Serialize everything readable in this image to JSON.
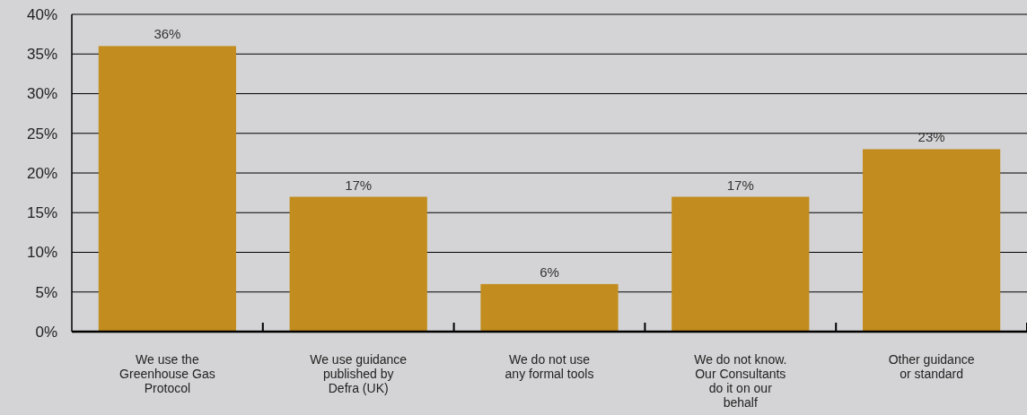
{
  "chart_data": {
    "type": "bar",
    "categories": [
      "We use the Greenhouse Gas Protocol",
      "We use guidance published by Defra (UK)",
      "We do not use any formal tools",
      "We do not know. Our Consultants do it on our behalf",
      "Other guidance or standard"
    ],
    "values": [
      36,
      17,
      6,
      17,
      23
    ],
    "value_labels": [
      "36%",
      "17%",
      "6%",
      "17%",
      "23%"
    ],
    "color": "#c28d1e",
    "ylim": [
      0,
      40
    ],
    "yticks": [
      {
        "value": 0,
        "label": "0%"
      },
      {
        "value": 5,
        "label": "5%"
      },
      {
        "value": 10,
        "label": "10%"
      },
      {
        "value": 15,
        "label": "15%"
      },
      {
        "value": 20,
        "label": "20%"
      },
      {
        "value": 25,
        "label": "25%"
      },
      {
        "value": 30,
        "label": "30%"
      },
      {
        "value": 35,
        "label": "35%"
      },
      {
        "value": 40,
        "label": "40%"
      }
    ],
    "grid": "y"
  }
}
